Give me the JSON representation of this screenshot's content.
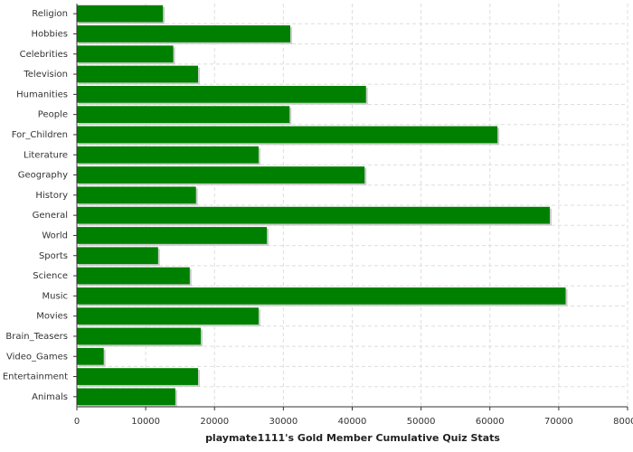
{
  "chart_data": {
    "type": "barh",
    "title": "playmate1111's Gold Member Cumulative Quiz Stats",
    "categories": [
      "Religion",
      "Hobbies",
      "Celebrities",
      "Television",
      "Humanities",
      "People",
      "For_Children",
      "Literature",
      "Geography",
      "History",
      "General",
      "World",
      "Sports",
      "Science",
      "Music",
      "Movies",
      "Brain_Teasers",
      "Video_Games",
      "Entertainment",
      "Animals"
    ],
    "values": [
      12500,
      31000,
      14000,
      17600,
      42000,
      30900,
      61100,
      26400,
      41800,
      17300,
      68700,
      27600,
      11800,
      16400,
      71000,
      26400,
      18000,
      3900,
      17600,
      14300
    ],
    "color": "#008000",
    "xlim": [
      0,
      80000
    ],
    "xticks": [
      0,
      10000,
      20000,
      30000,
      40000,
      50000,
      60000,
      70000,
      80000
    ],
    "grid": true
  }
}
